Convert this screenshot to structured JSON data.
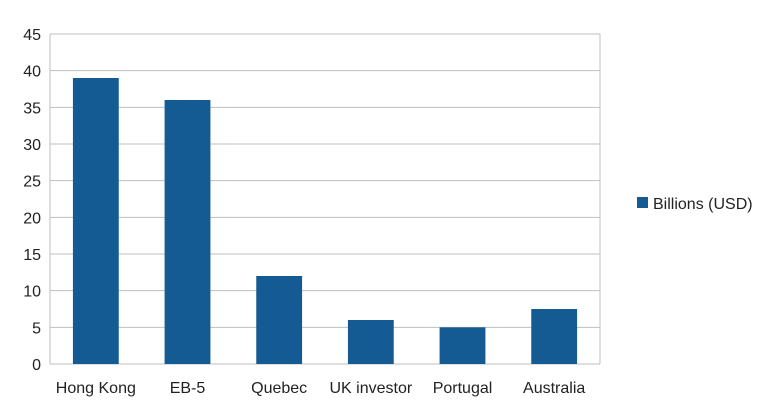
{
  "chart_data": {
    "type": "bar",
    "categories": [
      "Hong Kong",
      "EB-5",
      "Quebec",
      "UK investor",
      "Portugal",
      "Australia"
    ],
    "series": [
      {
        "name": "Billions (USD)",
        "values": [
          39,
          36,
          12,
          6,
          5,
          7.5
        ]
      }
    ],
    "title": "",
    "xlabel": "",
    "ylabel": "",
    "ylim": [
      0,
      45
    ],
    "yticks": [
      0,
      5,
      10,
      15,
      20,
      25,
      30,
      35,
      40,
      45
    ],
    "grid": true,
    "legend_position": "right",
    "bar_color": "#135B92",
    "grid_color": "#BFBFBF"
  }
}
